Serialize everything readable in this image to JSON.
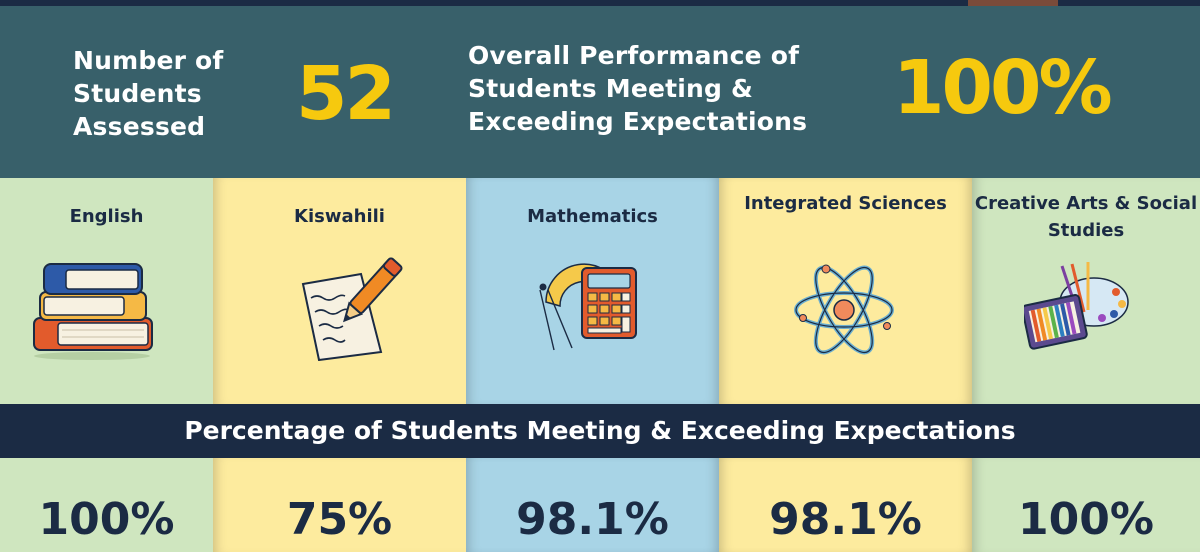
{
  "header": {
    "students_label": "Number of Students Assessed",
    "students_value": "52",
    "overall_label": "Overall Performance of Students Meeting & Exceeding Expectations",
    "overall_value": "100%"
  },
  "subjects": [
    {
      "name": "English",
      "percent": "100%",
      "color": "#cfe6bf",
      "icon": "books-icon"
    },
    {
      "name": "Kiswahili",
      "percent": "75%",
      "color": "#fdeb9e",
      "icon": "pen-paper-icon"
    },
    {
      "name": "Mathematics",
      "percent": "98.1%",
      "color": "#a8d4e6",
      "icon": "calculator-icon"
    },
    {
      "name": "Integrated Sciences",
      "percent": "98.1%",
      "color": "#fdeb9e",
      "icon": "atom-icon"
    },
    {
      "name": "Creative Arts & Social Studies",
      "percent": "100%",
      "color": "#cfe6bf",
      "icon": "art-supplies-icon"
    }
  ],
  "banner": {
    "text": "Percentage of Students Meeting & Exceeding Expectations"
  },
  "colors": {
    "header_bg": "#38606a",
    "accent_yellow": "#f6c90e",
    "navy": "#1b2b44"
  }
}
